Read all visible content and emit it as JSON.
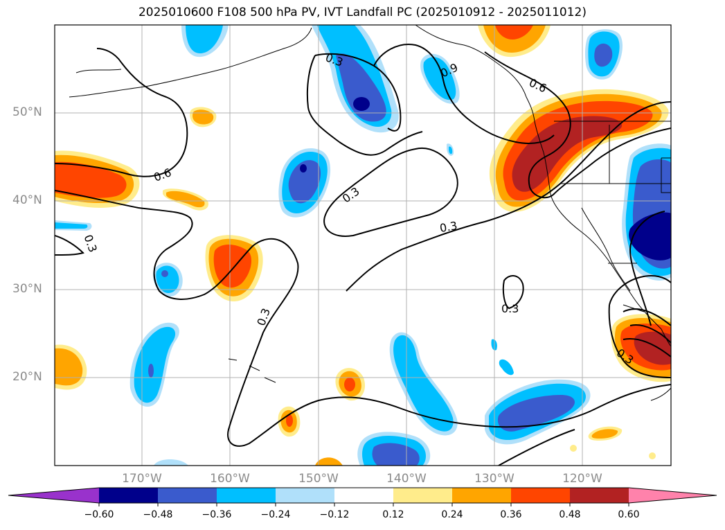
{
  "title": "2025010600 F108 500 hPa PV, IVT Landfall PC (2025010912 - 2025011012)",
  "lat_labels": [
    "50°N",
    "40°N",
    "30°N",
    "20°N"
  ],
  "lon_labels": [
    "170°W",
    "160°W",
    "150°W",
    "140°W",
    "130°W",
    "120°W"
  ],
  "contour_labels": [
    "0.3",
    "0.9",
    "0.6",
    "0.6",
    "0.3",
    "0.3",
    "0.3",
    "0.3",
    "0.3",
    "0.3"
  ],
  "colorbar": {
    "ticks": [
      "−0.60",
      "−0.48",
      "−0.36",
      "−0.24",
      "−0.12",
      "0.12",
      "0.24",
      "0.36",
      "0.48",
      "0.60"
    ],
    "colors": [
      "#9932cc",
      "#00008b",
      "#3a5bcd",
      "#00bfff",
      "#b0e0fa",
      "#ffffff",
      "#ffec8b",
      "#ffa500",
      "#ff4500",
      "#b22222",
      "#ff82ab"
    ]
  },
  "colors": {
    "neg_strong": "#00008b",
    "neg_med": "#3a5bcd",
    "neg_weak": "#00bfff",
    "neg_faint": "#b0e0fa",
    "pos_faint": "#ffec8b",
    "pos_weak": "#ffa500",
    "pos_med": "#ff4500",
    "pos_strong": "#b22222",
    "grid": "#b0b0b0",
    "coast": "#000000"
  }
}
